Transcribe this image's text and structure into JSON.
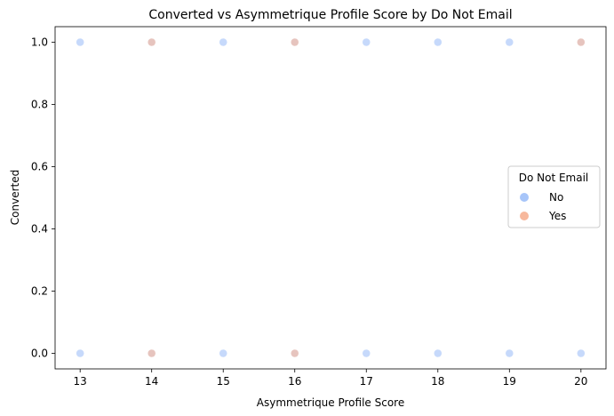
{
  "chart_data": {
    "type": "scatter",
    "title": "Converted vs Asymmetrique Profile Score by Do Not Email",
    "xlabel": "Asymmetrique Profile Score",
    "ylabel": "Converted",
    "xlim": [
      12.65,
      20.35
    ],
    "ylim": [
      -0.05,
      1.05
    ],
    "xticks": [
      13,
      14,
      15,
      16,
      17,
      18,
      19,
      20
    ],
    "yticks": [
      0.0,
      0.2,
      0.4,
      0.6,
      0.8,
      1.0
    ],
    "ytick_labels": [
      "0.0",
      "0.2",
      "0.4",
      "0.6",
      "0.8",
      "1.0"
    ],
    "grid": false,
    "legend": {
      "title": "Do Not Email",
      "placement": "center-right"
    },
    "series": [
      {
        "name": "No",
        "color": "#a7c5f9",
        "points": [
          {
            "x": 13,
            "y": 1
          },
          {
            "x": 14,
            "y": 1
          },
          {
            "x": 15,
            "y": 1
          },
          {
            "x": 16,
            "y": 1
          },
          {
            "x": 17,
            "y": 1
          },
          {
            "x": 18,
            "y": 1
          },
          {
            "x": 19,
            "y": 1
          },
          {
            "x": 20,
            "y": 1
          },
          {
            "x": 13,
            "y": 0
          },
          {
            "x": 14,
            "y": 0
          },
          {
            "x": 15,
            "y": 0
          },
          {
            "x": 16,
            "y": 0
          },
          {
            "x": 17,
            "y": 0
          },
          {
            "x": 18,
            "y": 0
          },
          {
            "x": 19,
            "y": 0
          },
          {
            "x": 20,
            "y": 0
          }
        ]
      },
      {
        "name": "Yes",
        "color": "#f7b89c",
        "points": [
          {
            "x": 14,
            "y": 1
          },
          {
            "x": 16,
            "y": 1
          },
          {
            "x": 20,
            "y": 1
          },
          {
            "x": 14,
            "y": 0
          },
          {
            "x": 16,
            "y": 0
          }
        ]
      }
    ]
  }
}
